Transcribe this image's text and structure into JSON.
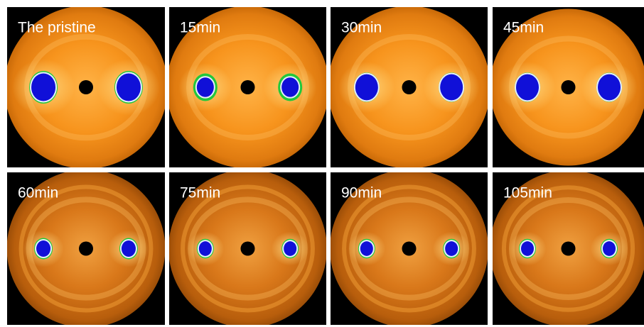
{
  "panels": [
    {
      "label": "The pristine"
    },
    {
      "label": "15min"
    },
    {
      "label": "30min"
    },
    {
      "label": "45min"
    },
    {
      "label": "60min"
    },
    {
      "label": "75min"
    },
    {
      "label": "90min"
    },
    {
      "label": "105min"
    }
  ]
}
